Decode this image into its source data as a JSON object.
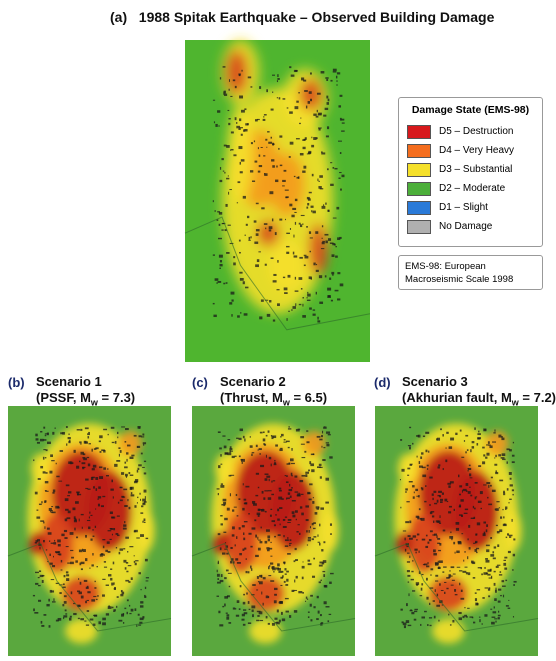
{
  "panels": [
    {
      "label": "(a)",
      "title": "1988 Spitak Earthquake – Observed Building Damage"
    },
    {
      "label": "(b)",
      "title": "Scenario 1",
      "subtitle": {
        "before": "(PSSF, M",
        "sub": "w",
        "after": " = 7.3)"
      }
    },
    {
      "label": "(c)",
      "title": "Scenario 2",
      "subtitle": {
        "before": "(Thrust, M",
        "sub": "w",
        "after": " = 6.5)"
      }
    },
    {
      "label": "(d)",
      "title": "Scenario 3",
      "subtitle": {
        "before": "(Akhurian fault, M",
        "sub": "w",
        "after": " = 7.2)"
      }
    }
  ],
  "legend": {
    "title": "Damage State (EMS-98)",
    "items": [
      {
        "label": "D5 – Destruction",
        "color": "#d7191c"
      },
      {
        "label": "D4 – Very Heavy",
        "color": "#f46d1e"
      },
      {
        "label": "D3 – Substantial",
        "color": "#f5e02a"
      },
      {
        "label": "D2 – Moderate",
        "color": "#4caf3a"
      },
      {
        "label": "D1 – Slight",
        "color": "#2a7ad8"
      },
      {
        "label": "No Damage",
        "color": "#b0b0b0"
      }
    ]
  },
  "note": "EMS-98: European Macroseismic Scale 1998"
}
